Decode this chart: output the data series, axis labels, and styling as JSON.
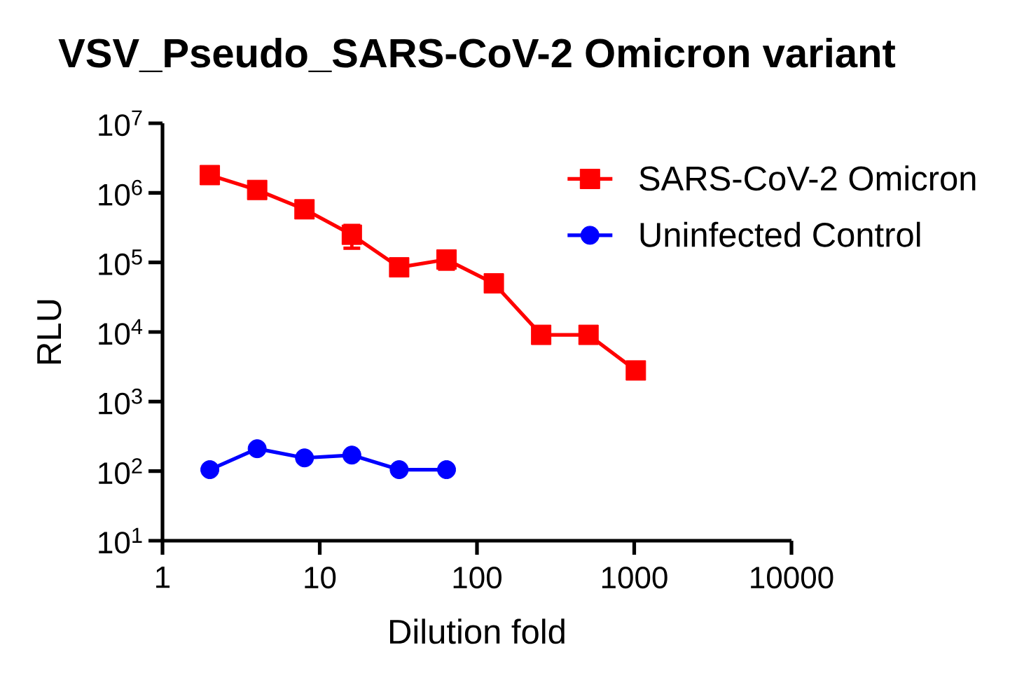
{
  "chart_data": {
    "type": "line",
    "title": "VSV_Pseudo_SARS-CoV-2 Omicron variant",
    "xlabel": "Dilution fold",
    "ylabel": "RLU",
    "log": "xy",
    "xlim": [
      1,
      10000
    ],
    "xticks": [
      1,
      10,
      100,
      1000,
      10000
    ],
    "ylim": [
      10,
      10000000
    ],
    "yticks": [
      {
        "value": 10,
        "label": "10$^{1}$"
      },
      {
        "value": 100,
        "label": "10$^{2}$"
      },
      {
        "value": 1000,
        "label": "10$^{3}$"
      },
      {
        "value": 10000,
        "label": "10$^{4}$"
      },
      {
        "value": 100000,
        "label": "10$^{5}$"
      },
      {
        "value": 1000000,
        "label": "10$^{6}$"
      },
      {
        "value": 10000000,
        "label": "10$^{7}$"
      }
    ],
    "legend": "top right",
    "series": [
      {
        "name": "SARS-CoV-2 Omicron",
        "color": "#ff0000",
        "marker": "square",
        "line_style": "solid",
        "x": [
          2,
          4,
          8,
          16,
          32,
          64,
          128,
          256,
          512,
          1024
        ],
        "values": [
          1800000,
          1100000,
          580000,
          250000,
          85000,
          110000,
          50000,
          9100,
          9100,
          2800
        ],
        "errors": [
          null,
          null,
          null,
          90000,
          null,
          30000,
          null,
          null,
          null,
          null
        ]
      },
      {
        "name": "Uninfected Control",
        "color": "#0000ff",
        "marker": "circle",
        "line_style": "solid",
        "x": [
          2,
          4,
          8,
          16,
          32,
          64
        ],
        "values": [
          105,
          210,
          155,
          170,
          105,
          105
        ]
      }
    ]
  }
}
